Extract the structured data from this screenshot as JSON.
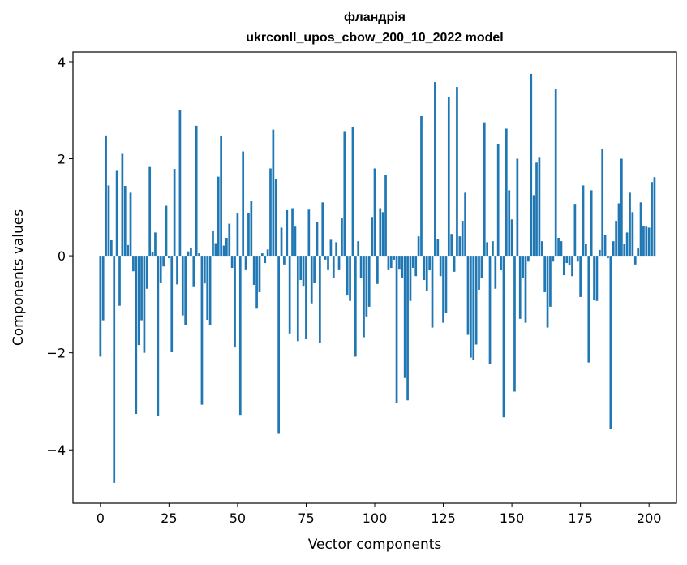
{
  "chart_data": {
    "type": "bar",
    "title": "фландрія",
    "subtitle": "ukrconll_upos_cbow_200_10_2022 model",
    "xlabel": "Vector components",
    "ylabel": "Components values",
    "xlim": [
      -10,
      210
    ],
    "ylim": [
      -5.1,
      4.2
    ],
    "xticks": [
      0,
      25,
      50,
      75,
      100,
      125,
      150,
      175,
      200
    ],
    "yticks": [
      -4,
      -2,
      0,
      2,
      4
    ],
    "xtick_labels": [
      "0",
      "25",
      "50",
      "75",
      "100",
      "125",
      "150",
      "175",
      "200"
    ],
    "ytick_labels": [
      "−4",
      "−2",
      "0",
      "2",
      "4"
    ],
    "grid": false,
    "bar_color": "#1f77b4",
    "values": [
      -2.08,
      -1.33,
      2.48,
      1.45,
      0.32,
      -4.68,
      1.75,
      -1.03,
      2.1,
      1.44,
      0.22,
      1.3,
      -0.32,
      -3.26,
      -1.84,
      -1.33,
      -2.0,
      -0.68,
      1.83,
      0.07,
      0.48,
      -3.3,
      -0.55,
      -0.22,
      1.03,
      -0.05,
      -1.98,
      1.79,
      -0.59,
      3.0,
      -1.23,
      -1.42,
      0.09,
      0.16,
      -0.63,
      2.68,
      0.05,
      -3.07,
      -0.57,
      -1.32,
      -1.42,
      0.52,
      0.26,
      1.63,
      2.46,
      0.21,
      0.37,
      0.66,
      -0.25,
      -1.89,
      0.87,
      -3.28,
      2.15,
      -0.28,
      0.88,
      1.13,
      -0.6,
      -1.09,
      -0.75,
      0.05,
      -0.15,
      0.13,
      1.8,
      2.6,
      1.58,
      -3.67,
      0.58,
      -0.18,
      0.94,
      -1.6,
      0.98,
      0.6,
      -1.76,
      -0.5,
      -0.62,
      -1.72,
      0.95,
      -0.98,
      -0.55,
      0.7,
      -1.8,
      1.1,
      -0.08,
      -0.28,
      0.33,
      -0.45,
      0.28,
      -0.28,
      0.77,
      2.57,
      -0.82,
      -0.93,
      2.65,
      -2.08,
      0.3,
      -0.45,
      -1.68,
      -1.25,
      -1.05,
      0.8,
      1.8,
      -0.58,
      0.98,
      0.9,
      1.67,
      -0.28,
      -0.25,
      -0.08,
      -3.04,
      -0.27,
      -0.45,
      -2.52,
      -2.98,
      -0.93,
      -0.25,
      -0.42,
      0.4,
      2.88,
      -0.5,
      -0.72,
      -0.3,
      -1.48,
      3.58,
      0.35,
      -0.42,
      -1.38,
      -1.18,
      3.28,
      0.45,
      -0.33,
      3.48,
      0.4,
      0.72,
      1.3,
      -1.63,
      -2.1,
      -2.15,
      -1.83,
      -0.7,
      -0.45,
      2.75,
      0.28,
      -2.23,
      0.3,
      -0.68,
      2.3,
      -0.3,
      -3.33,
      2.62,
      1.35,
      0.75,
      -2.8,
      2.0,
      -1.3,
      -0.45,
      -1.38,
      -0.12,
      3.75,
      1.25,
      1.92,
      2.02,
      0.3,
      -0.75,
      -1.48,
      -1.05,
      -0.12,
      3.43,
      0.37,
      0.3,
      -0.4,
      -0.15,
      -0.2,
      -0.42,
      1.07,
      -0.12,
      -0.85,
      1.45,
      0.25,
      -2.2,
      1.35,
      -0.92,
      -0.93,
      0.12,
      2.2,
      0.42,
      -0.05,
      -3.57,
      0.3,
      0.72,
      1.08,
      2.0,
      0.25,
      0.48,
      1.3,
      0.9,
      -0.18,
      0.15,
      1.1,
      0.62,
      0.6,
      0.58,
      1.52,
      1.62
    ]
  }
}
